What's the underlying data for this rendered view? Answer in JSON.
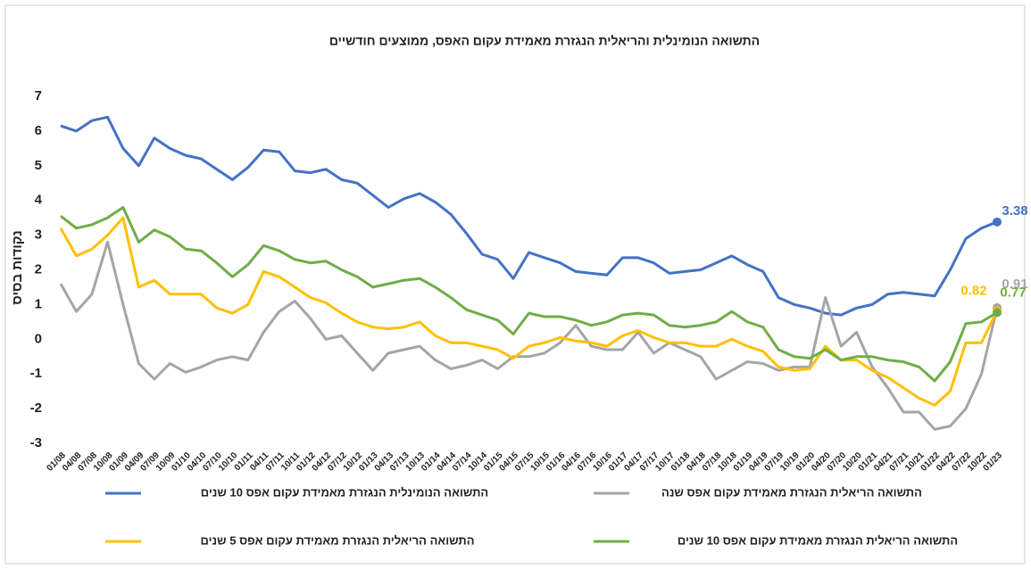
{
  "chart_data": {
    "type": "line",
    "title": "התשואה הנומינלית והריאלית הנגזרת מאמידת עקום האפס, ממוצעים חודשיים",
    "y_label": "נקודות בסיס",
    "categories": [
      "01/08",
      "04/08",
      "07/08",
      "10/08",
      "01/09",
      "04/09",
      "07/09",
      "10/09",
      "01/10",
      "04/10",
      "07/10",
      "10/10",
      "01/11",
      "04/11",
      "07/11",
      "10/11",
      "01/12",
      "04/12",
      "07/12",
      "10/12",
      "01/13",
      "04/13",
      "07/13",
      "10/13",
      "01/14",
      "04/14",
      "07/14",
      "10/14",
      "01/15",
      "04/15",
      "07/15",
      "10/15",
      "01/16",
      "04/16",
      "07/16",
      "10/16",
      "01/17",
      "04/17",
      "07/17",
      "10/17",
      "01/18",
      "04/18",
      "07/18",
      "10/18",
      "01/19",
      "04/19",
      "07/19",
      "10/19",
      "01/20",
      "04/20",
      "07/20",
      "10/20",
      "01/21",
      "04/21",
      "07/21",
      "10/21",
      "01/22",
      "04/22",
      "07/22",
      "10/22",
      "01/23"
    ],
    "series": [
      {
        "name": "התשואה הנומינלית הנגזרת מאמידת עקום אפס 10 שנים",
        "color": "#4472c4",
        "values": [
          6.15,
          6.0,
          6.3,
          6.4,
          5.5,
          5.0,
          5.8,
          5.5,
          5.3,
          5.2,
          4.9,
          4.6,
          4.95,
          5.45,
          5.4,
          4.85,
          4.8,
          4.9,
          4.6,
          4.5,
          4.15,
          3.8,
          4.05,
          4.2,
          3.95,
          3.6,
          3.05,
          2.45,
          2.3,
          1.75,
          2.5,
          2.35,
          2.2,
          1.95,
          1.9,
          1.85,
          2.35,
          2.35,
          2.2,
          1.9,
          1.95,
          2.0,
          2.2,
          2.4,
          2.15,
          1.95,
          1.2,
          1.0,
          0.9,
          0.75,
          0.7,
          0.9,
          1.0,
          1.3,
          1.35,
          1.3,
          1.25,
          2.0,
          2.9,
          3.2,
          3.38
        ]
      },
      {
        "name": "התשואה הריאלית הנגזרת מאמידת עקום אפס שנה",
        "color": "#a5a5a5",
        "values": [
          1.6,
          0.8,
          1.3,
          2.8,
          1.0,
          -0.7,
          -1.15,
          -0.7,
          -0.95,
          -0.8,
          -0.6,
          -0.5,
          -0.6,
          0.2,
          0.8,
          1.1,
          0.6,
          0.0,
          0.1,
          -0.4,
          -0.9,
          -0.4,
          -0.3,
          -0.2,
          -0.6,
          -0.85,
          -0.75,
          -0.6,
          -0.85,
          -0.5,
          -0.5,
          -0.4,
          -0.1,
          0.4,
          -0.2,
          -0.3,
          -0.3,
          0.2,
          -0.4,
          -0.1,
          -0.3,
          -0.5,
          -1.15,
          -0.9,
          -0.65,
          -0.7,
          -0.9,
          -0.8,
          -0.8,
          1.2,
          -0.2,
          0.2,
          -0.8,
          -1.4,
          -2.1,
          -2.1,
          -2.6,
          -2.5,
          -2.0,
          -1.0,
          0.91
        ]
      },
      {
        "name": "התשואה הריאלית הנגזרת מאמידת עקום אפס 5 שנים",
        "color": "#ffc000",
        "values": [
          3.2,
          2.4,
          2.6,
          3.0,
          3.5,
          1.5,
          1.7,
          1.3,
          1.3,
          1.3,
          0.9,
          0.75,
          1.0,
          1.95,
          1.8,
          1.5,
          1.2,
          1.05,
          0.75,
          0.5,
          0.35,
          0.3,
          0.35,
          0.5,
          0.1,
          -0.1,
          -0.1,
          -0.2,
          -0.3,
          -0.55,
          -0.2,
          -0.1,
          0.05,
          -0.05,
          -0.1,
          -0.2,
          0.1,
          0.25,
          0.05,
          -0.1,
          -0.1,
          -0.2,
          -0.2,
          0.0,
          -0.2,
          -0.35,
          -0.8,
          -0.9,
          -0.85,
          -0.2,
          -0.6,
          -0.6,
          -0.9,
          -1.1,
          -1.4,
          -1.7,
          -1.9,
          -1.5,
          -0.1,
          -0.1,
          0.82
        ]
      },
      {
        "name": "התשואה הריאלית הנגזרת מאמידת עקום אפס 10 שנים",
        "color": "#70ad47",
        "values": [
          3.55,
          3.2,
          3.3,
          3.5,
          3.8,
          2.8,
          3.15,
          2.95,
          2.6,
          2.55,
          2.2,
          1.8,
          2.15,
          2.7,
          2.55,
          2.3,
          2.2,
          2.25,
          2.0,
          1.8,
          1.5,
          1.6,
          1.7,
          1.75,
          1.5,
          1.2,
          0.85,
          0.7,
          0.55,
          0.15,
          0.75,
          0.65,
          0.65,
          0.55,
          0.4,
          0.5,
          0.7,
          0.75,
          0.7,
          0.4,
          0.35,
          0.4,
          0.5,
          0.8,
          0.5,
          0.35,
          -0.3,
          -0.5,
          -0.55,
          -0.3,
          -0.6,
          -0.5,
          -0.5,
          -0.6,
          -0.65,
          -0.8,
          -1.2,
          -0.65,
          0.45,
          0.5,
          0.77
        ]
      }
    ],
    "ylim": [
      -3,
      7
    ],
    "yticks": [
      -3,
      -2,
      -1,
      0,
      1,
      2,
      3,
      4,
      5,
      6,
      7
    ],
    "grid": false
  }
}
